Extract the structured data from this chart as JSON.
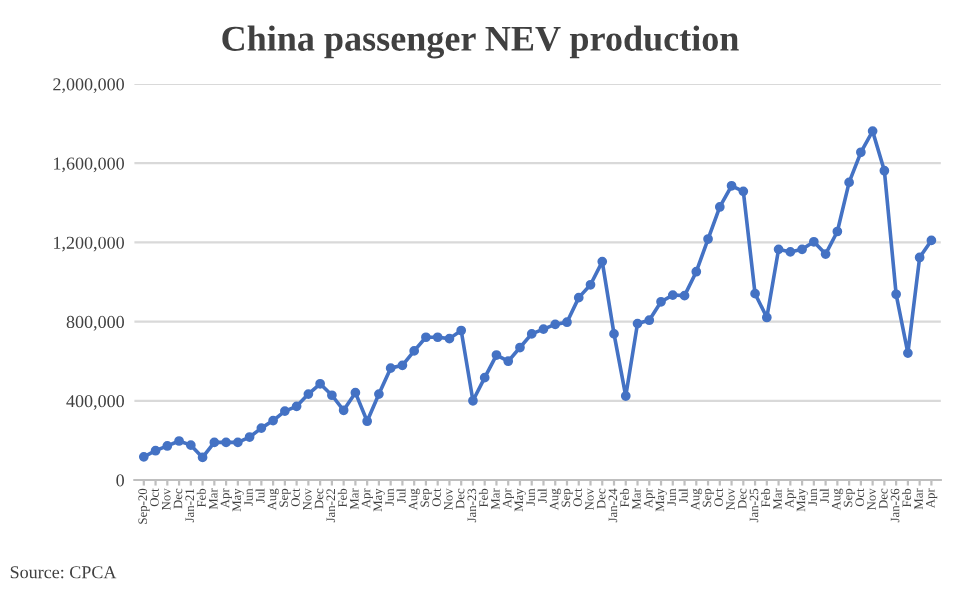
{
  "chart_data": {
    "type": "line",
    "title": "China passenger NEV production",
    "categories": [
      "Sep-20",
      "Oct",
      "Nov",
      "Dec",
      "Jan-21",
      "Feb",
      "Mar",
      "Apr",
      "May",
      "Jun",
      "Jul",
      "Aug",
      "Sep",
      "Oct",
      "Nov",
      "Dec",
      "Jan-22",
      "Feb",
      "Mar",
      "Apr",
      "May",
      "Jun",
      "Jul",
      "Aug",
      "Sep",
      "Oct",
      "Nov",
      "Dec",
      "Jan-23",
      "Feb",
      "Mar",
      "Apr",
      "May",
      "Jun",
      "Jul",
      "Aug",
      "Sep",
      "Oct",
      "Nov",
      "Dec",
      "Jan-24",
      "Feb",
      "Mar",
      "Apr",
      "May",
      "Jun",
      "Jul",
      "Aug",
      "Sep",
      "Oct",
      "Nov",
      "Dec",
      "Jan-25",
      "Feb",
      "Mar",
      "Apr",
      "May",
      "Jun",
      "Jul",
      "Aug",
      "Sep",
      "Oct",
      "Nov",
      "Dec",
      "Jan-26",
      "Feb",
      "Mar",
      "Apr"
    ],
    "series": [
      {
        "color": "#4472c4",
        "values": [
          117000,
          148000,
          172000,
          197000,
          176000,
          114000,
          190000,
          190000,
          190000,
          217000,
          262000,
          300000,
          348000,
          372000,
          434000,
          486000,
          428000,
          352000,
          441000,
          297000,
          434000,
          565000,
          579000,
          652000,
          721000,
          721000,
          714000,
          755000,
          400000,
          517000,
          631000,
          600000,
          669000,
          738000,
          762000,
          786000,
          797000,
          921000,
          986000,
          1103000,
          738000,
          424000,
          790000,
          807000,
          900000,
          934000,
          931000,
          1052000,
          1217000,
          1379000,
          1486000,
          1458000,
          941000,
          821000,
          1165000,
          1152000,
          1165000,
          1203000,
          1141000,
          1255000,
          1503000,
          1655000,
          1762000,
          1562000,
          938000,
          641000,
          1124000,
          1210000
        ]
      }
    ],
    "ylim": [
      0,
      2000000
    ],
    "yticks": [
      {
        "value": 0,
        "label": "0"
      },
      {
        "value": 400000,
        "label": "400,000"
      },
      {
        "value": 800000,
        "label": "800,000"
      },
      {
        "value": 1200000,
        "label": "1,200,000"
      },
      {
        "value": 1600000,
        "label": "1,600,000"
      },
      {
        "value": 2000000,
        "label": "2,000,000"
      }
    ],
    "grid": "y",
    "marker": "circle",
    "line_style": "solid",
    "annotations": [
      "Source: CPCA"
    ]
  }
}
